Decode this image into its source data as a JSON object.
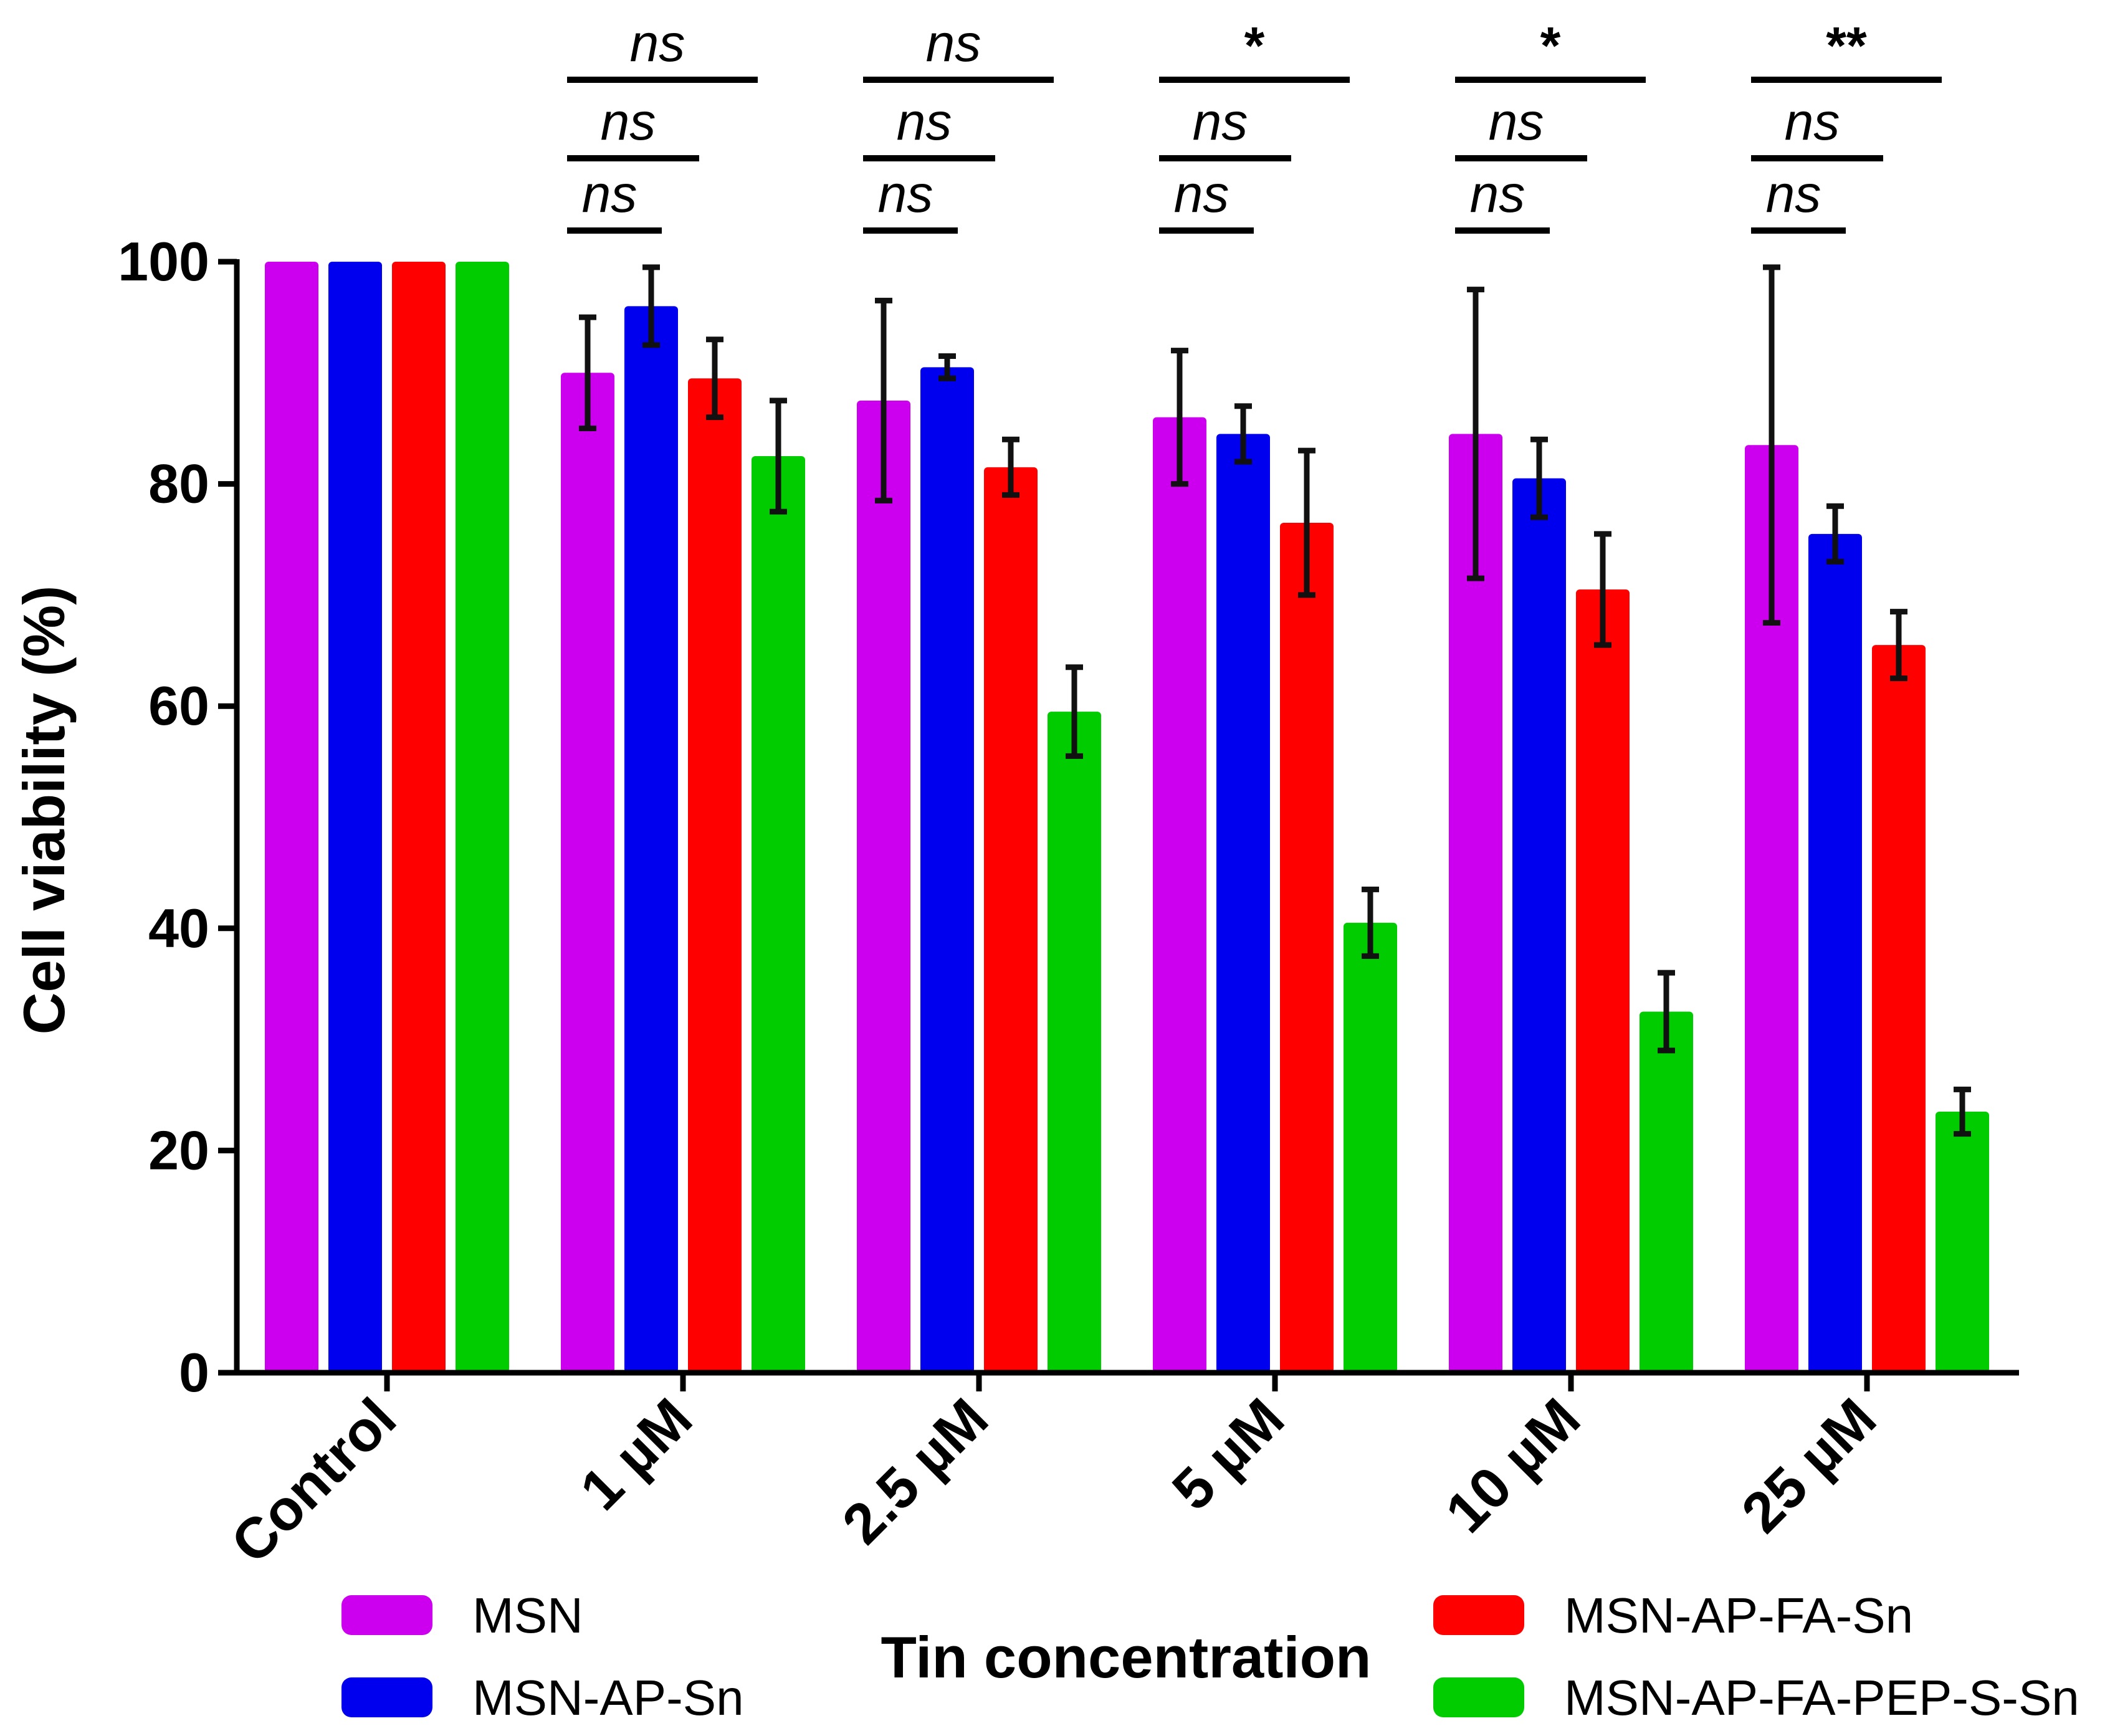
{
  "chart_data": {
    "type": "bar",
    "xlabel": "Tin concentration",
    "ylabel": "Cell viability (%)",
    "ylim": [
      0,
      100
    ],
    "yticks": [
      0,
      20,
      40,
      60,
      80,
      100
    ],
    "categories": [
      "Control",
      "1 µM",
      "2.5 µM",
      "5 µM",
      "10 µM",
      "25 µM"
    ],
    "series": [
      {
        "name": "MSN",
        "color": "#cc00ee",
        "values": [
          100,
          90,
          87.5,
          86,
          84.5,
          83.5
        ],
        "errors": [
          0,
          5,
          9,
          6,
          13,
          16
        ]
      },
      {
        "name": "MSN-AP-Sn",
        "color": "#0000ee",
        "values": [
          100,
          96,
          90.5,
          84.5,
          80.5,
          75.5
        ],
        "errors": [
          0,
          3.5,
          1,
          2.5,
          3.5,
          2.5
        ]
      },
      {
        "name": "MSN-AP-FA-Sn",
        "color": "#ff0000",
        "values": [
          100,
          89.5,
          81.5,
          76.5,
          70.5,
          65.5
        ],
        "errors": [
          0,
          3.5,
          2.5,
          6.5,
          5,
          3
        ]
      },
      {
        "name": "MSN-AP-FA-PEP-S-Sn",
        "color": "#00cc00",
        "values": [
          100,
          82.5,
          59.5,
          40.5,
          32.5,
          23.5
        ],
        "errors": [
          0,
          5,
          4,
          3,
          3.5,
          2
        ]
      }
    ],
    "significance": [
      [
        "ns",
        "ns",
        "ns"
      ],
      [
        "ns",
        "ns",
        "ns"
      ],
      [
        "*",
        "ns",
        "ns"
      ],
      [
        "*",
        "ns",
        "ns"
      ],
      [
        "**",
        "ns",
        "ns"
      ]
    ],
    "legend_position": "bottom"
  }
}
